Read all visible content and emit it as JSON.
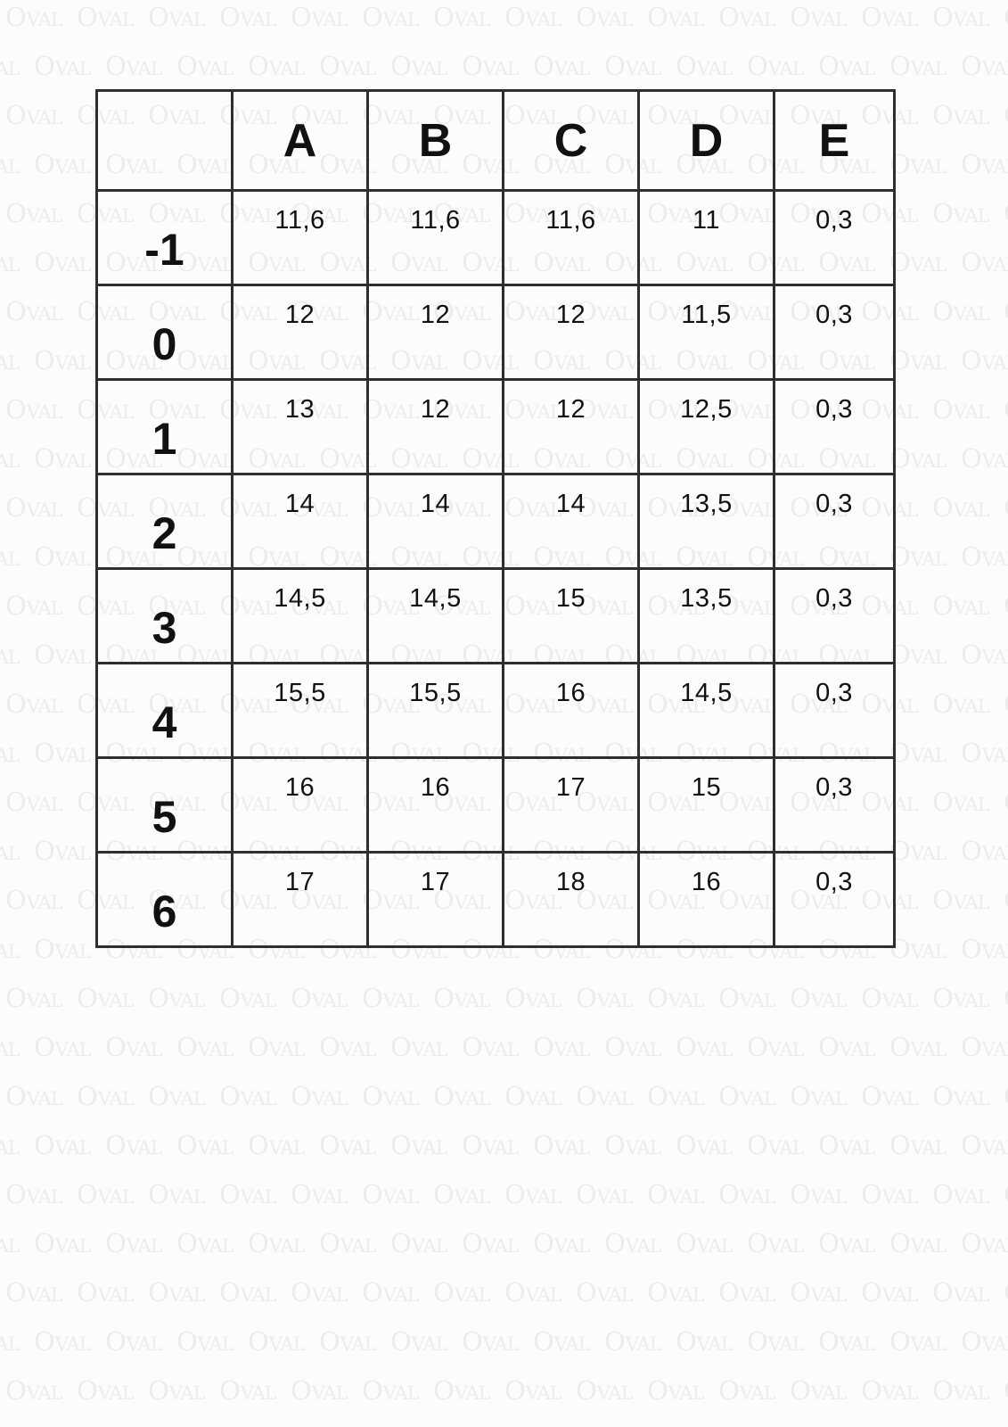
{
  "page": {
    "background": "#fcfcfc"
  },
  "watermark": {
    "word": "OVAL",
    "color": "#ececec"
  },
  "table": {
    "corner_label": "",
    "columns": [
      "A",
      "B",
      "C",
      "D",
      "E"
    ],
    "rows": [
      {
        "label": "-1",
        "values": [
          "11,6",
          "11,6",
          "11,6",
          "11",
          "0,3"
        ]
      },
      {
        "label": "0",
        "values": [
          "12",
          "12",
          "12",
          "11,5",
          "0,3"
        ]
      },
      {
        "label": "1",
        "values": [
          "13",
          "12",
          "12",
          "12,5",
          "0,3"
        ]
      },
      {
        "label": "2",
        "values": [
          "14",
          "14",
          "14",
          "13,5",
          "0,3"
        ]
      },
      {
        "label": "3",
        "values": [
          "14,5",
          "14,5",
          "15",
          "13,5",
          "0,3"
        ]
      },
      {
        "label": "4",
        "values": [
          "15,5",
          "15,5",
          "16",
          "14,5",
          "0,3"
        ]
      },
      {
        "label": "5",
        "values": [
          "16",
          "16",
          "17",
          "15",
          "0,3"
        ]
      },
      {
        "label": "6",
        "values": [
          "17",
          "17",
          "18",
          "16",
          "0,3"
        ]
      }
    ],
    "border_color": "#2e2e2e",
    "text_color": "#111111"
  },
  "chart_data": {
    "type": "table",
    "title": "",
    "categories": [
      "-1",
      "0",
      "1",
      "2",
      "3",
      "4",
      "5",
      "6"
    ],
    "series": [
      {
        "name": "A",
        "values": [
          11.6,
          12,
          13,
          14,
          14.5,
          15.5,
          16,
          17
        ]
      },
      {
        "name": "B",
        "values": [
          11.6,
          12,
          12,
          14,
          14.5,
          15.5,
          16,
          17
        ]
      },
      {
        "name": "C",
        "values": [
          11.6,
          12,
          12,
          14,
          15,
          16,
          17,
          18
        ]
      },
      {
        "name": "D",
        "values": [
          11,
          11.5,
          12.5,
          13.5,
          13.5,
          14.5,
          15,
          16
        ]
      },
      {
        "name": "E",
        "values": [
          0.3,
          0.3,
          0.3,
          0.3,
          0.3,
          0.3,
          0.3,
          0.3
        ]
      }
    ],
    "decimal_separator": ","
  }
}
